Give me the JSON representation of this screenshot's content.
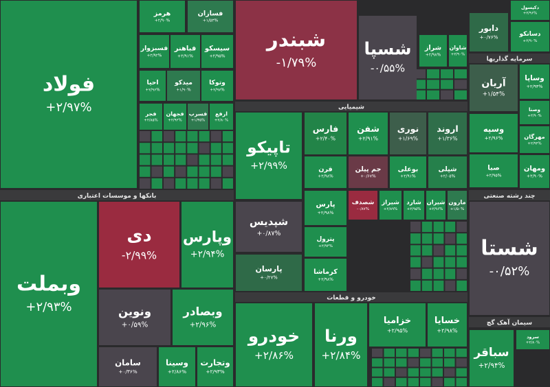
{
  "chart_data": {
    "type": "treemap",
    "sectors": [
      "بانکها و موسسات اعتباری",
      "شیمیایی",
      "خودرو و قطعات",
      "سرمایه گذاریها",
      "چند رشته صنعتی",
      "سیمان آهک گچ"
    ],
    "categories": [
      "فولاد",
      "هرمز",
      "فسازان",
      "فسبزوار",
      "فباهنر",
      "سیسکو",
      "احیا",
      "میدکو",
      "وتوکا",
      "فجر",
      "فجهان",
      "فسرب",
      "ارفع",
      "وبملت",
      "دی",
      "وپارس",
      "ونوین",
      "وبصادر",
      "سامان",
      "وسینا",
      "وتجارت",
      "شبندر",
      "شسپا",
      "شراز",
      "شاوان",
      "تاپیکو",
      "فارس",
      "شفن",
      "نوری",
      "اروند",
      "قرن",
      "جم پیلن",
      "بوعلی",
      "شپلی",
      "شپدیس",
      "پارسان",
      "پارس",
      "پترول",
      "کرماشا",
      "شصدف",
      "شیراز",
      "شارد",
      "شیران",
      "مارون",
      "خودرو",
      "ورنا",
      "خزامیا",
      "خسایا",
      "دابور",
      "دکپسول",
      "دسانکو",
      "آریان",
      "وساپا",
      "وسپه",
      "صبا",
      "ومهان",
      "وصنا",
      "مهرگان",
      "شستا",
      "سرود",
      "سباقر"
    ],
    "values": [
      2.97,
      2.9,
      1.53,
      2.92,
      2.91,
      2.95,
      2.96,
      1.9,
      2.97,
      2.85,
      2.92,
      1.35,
      2.8,
      2.93,
      -2.99,
      2.94,
      0.59,
      2.96,
      0.36,
      2.86,
      2.93,
      -1.79,
      -0.55,
      2.98,
      2.9,
      2.99,
      2.4,
      2.91,
      1.69,
      1.36,
      2.98,
      0.67,
      2.91,
      2.05,
      0.87,
      0.27,
      2.98,
      2.94,
      2.98,
      -0.87,
      2.89,
      2.95,
      2.96,
      1.5,
      2.86,
      2.84,
      2.95,
      2.98,
      0.76,
      2.96,
      2.9,
      1.54,
      2.93,
      2.96,
      2.95,
      2.9,
      2.9,
      2.94,
      -0.52,
      2.8,
      2.94
    ],
    "value_labels": [
      "+۲/۹۷%",
      "+۲/۹۰%",
      "+۱/۵۳%",
      "+۲/۹۲%",
      "+۲/۹۱%",
      "+۲/۹۵%",
      "+۲/۹۶%",
      "+۱/۹۰%",
      "+۲/۹۷%",
      "+۲/۸۵%",
      "+۲/۹۲%",
      "+۱/۳۵%",
      "+۲/۸۰%",
      "+۲/۹۳%",
      "-۲/۹۹%",
      "+۲/۹۴%",
      "+۰/۵۹%",
      "+۲/۹۶%",
      "+۰/۳۶%",
      "+۲/۸۶%",
      "+۲/۹۳%",
      "-۱/۷۹%",
      "-۰/۵۵%",
      "+۲/۹۸%",
      "+۲/۹۰%",
      "+۲/۹۹%",
      "+۲/۴۰%",
      "+۲/۹۱%",
      "+۱/۶۹%",
      "+۱/۳۶%",
      "+۲/۹۸%",
      "+۰/۶۷%",
      "+۲/۹۱%",
      "+۲/۰۵%",
      "+۰/۸۷%",
      "+۰/۲۷%",
      "+۲/۹۸%",
      "+۲/۹۴%",
      "+۲/۹۸%",
      "-۰/۸۷%",
      "+۲/۸۹%",
      "+۲/۹۵%",
      "+۲/۹۶%",
      "+۱/۵۰%",
      "+۲/۸۶%",
      "+۲/۸۴%",
      "+۲/۹۵%",
      "+۲/۹۸%",
      "+۰/۷۶%",
      "+۲/۹۶%",
      "+۲/۹۰%",
      "+۱/۵۴%",
      "+۲/۹۳%",
      "+۲/۹۶%",
      "+۲/۹۵%",
      "+۲/۹۰%",
      "+۲/۹۰%",
      "+۲/۹۴%",
      "-۰/۵۲%",
      "+۲/۸۰%",
      "+۲/۹۴%"
    ],
    "colors": [
      "#1f8f4e",
      "#1f8f4e",
      "#2e7a4f",
      "#1f8f4e",
      "#1f8f4e",
      "#1f8f4e",
      "#1f8f4e",
      "#2e7a4f",
      "#1f8f4e",
      "#1f8f4e",
      "#1f8f4e",
      "#2e7a4f",
      "#1f8f4e",
      "#1f8f4e",
      "#9a2b40",
      "#1f8f4e",
      "#4a454d",
      "#1f8f4e",
      "#4a454d",
      "#1f8f4e",
      "#1f8f4e",
      "#8c3246",
      "#4a454d",
      "#1f8f4e",
      "#1f8f4e",
      "#1f8f4e",
      "#228448",
      "#1f8f4e",
      "#3d5e4b",
      "#2f6e4a",
      "#1f8f4e",
      "#6a3a47",
      "#1f8f4e",
      "#25804b",
      "#4a454d",
      "#2f6a48",
      "#1f8f4e",
      "#1f8f4e",
      "#1f8f4e",
      "#9a2b40",
      "#1f8f4e",
      "#1f8f4e",
      "#1f8f4e",
      "#2e7a4f",
      "#1f8f4e",
      "#1f8f4e",
      "#1f8f4e",
      "#1f8f4e",
      "#2f6a48",
      "#1f8f4e",
      "#1f8f4e",
      "#3d5e4b",
      "#1f8f4e",
      "#1f8f4e",
      "#1f8f4e",
      "#1f8f4e",
      "#1f8f4e",
      "#1f8f4e",
      "#4a454d",
      "#1f8f4e",
      "#1f8f4e"
    ]
  }
}
